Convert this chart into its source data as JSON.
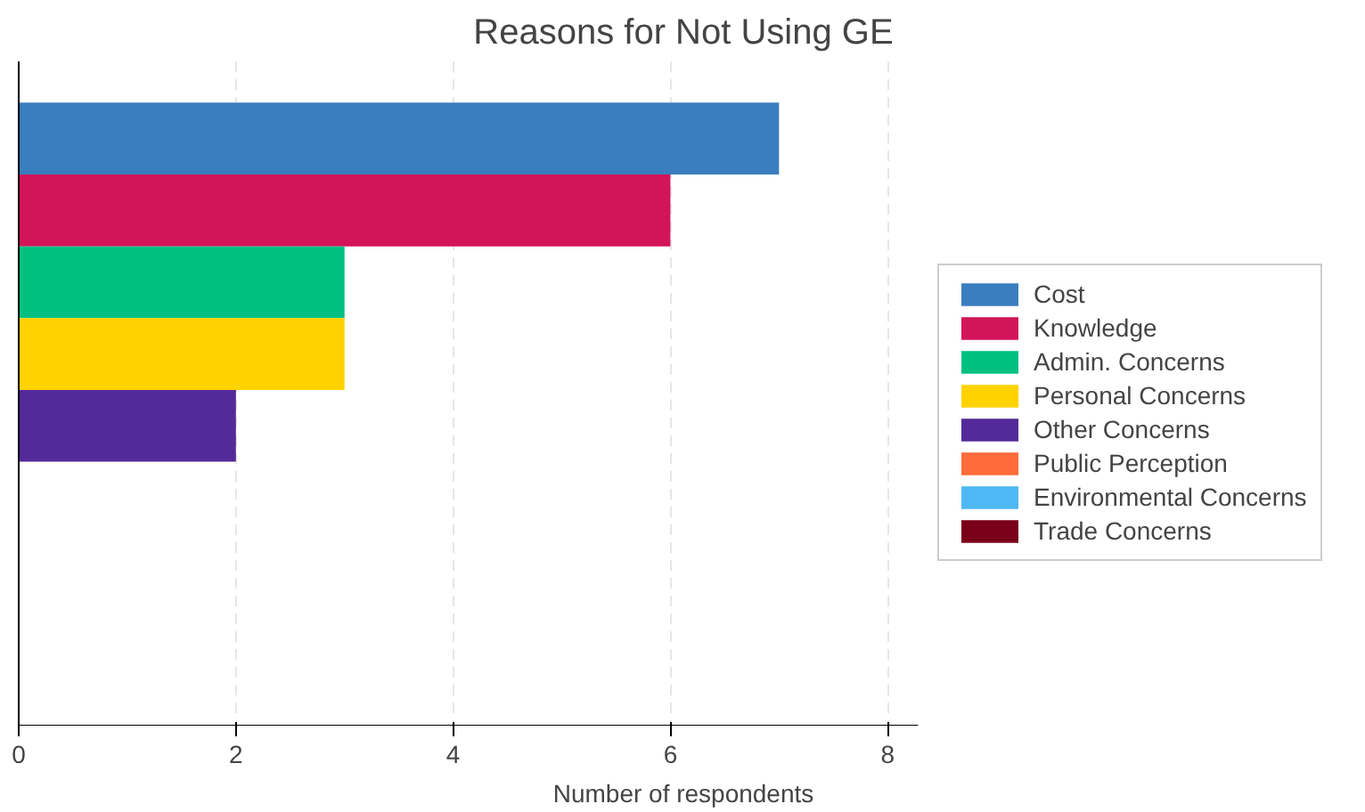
{
  "chart_data": {
    "type": "bar",
    "orientation": "horizontal",
    "title": "Reasons for Not Using GE",
    "xlabel": "Number of respondents",
    "categories": [
      null
    ],
    "series": [
      {
        "name": "Cost",
        "color": "#3a7ebf",
        "values": [
          7
        ]
      },
      {
        "name": "Knowledge",
        "color": "#d31458",
        "values": [
          6
        ]
      },
      {
        "name": "Admin. Concerns",
        "color": "#00c080",
        "values": [
          3
        ]
      },
      {
        "name": "Personal Concerns",
        "color": "#ffd200",
        "values": [
          3
        ]
      },
      {
        "name": "Other Concerns",
        "color": "#542a9a",
        "values": [
          2
        ]
      },
      {
        "name": "Public Perception",
        "color": "#ff6b3a",
        "values": [
          0
        ]
      },
      {
        "name": "Environmental Concerns",
        "color": "#4db8f5",
        "values": [
          0
        ]
      },
      {
        "name": "Trade Concerns",
        "color": "#7a0019",
        "values": [
          0
        ]
      }
    ],
    "xlim": [
      0,
      8.28
    ],
    "xticks": [
      0,
      2,
      4,
      6,
      8
    ],
    "grid": "x",
    "legend": "right"
  }
}
